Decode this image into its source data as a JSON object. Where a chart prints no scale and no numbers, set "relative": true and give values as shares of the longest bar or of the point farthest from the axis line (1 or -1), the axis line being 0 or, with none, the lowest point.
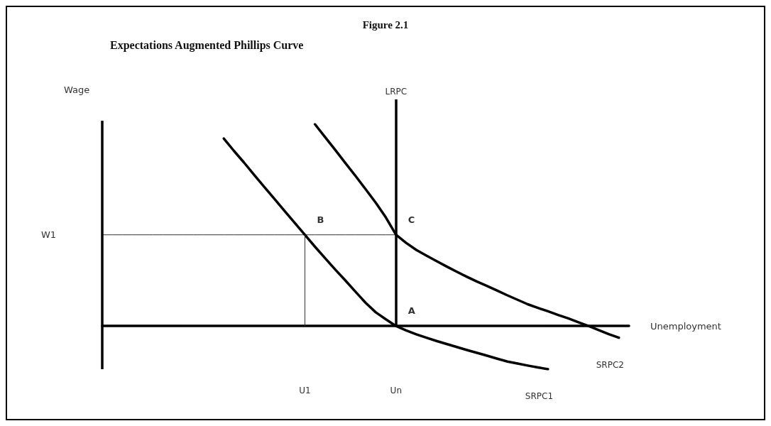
{
  "chart_data": {
    "type": "line",
    "title": "Figure 2.1",
    "subtitle": "Expectations Augmented Phillips Curve",
    "xlabel": "Unemployment",
    "ylabel": "Wage",
    "relative": true,
    "legend": false,
    "grid": false,
    "marker": "none",
    "categories": [
      null,
      null,
      null,
      null,
      null,
      null,
      null,
      null,
      null,
      null,
      null,
      null,
      null,
      null,
      null,
      null,
      null,
      null,
      null,
      null,
      "U1",
      null,
      null,
      null,
      null,
      null,
      null,
      null,
      null,
      "Un",
      null,
      null,
      null,
      null,
      null,
      null,
      null,
      null,
      null,
      null,
      null,
      null,
      null,
      null,
      null,
      null,
      null,
      null,
      null,
      null,
      null,
      null,
      null
    ],
    "series": [
      {
        "name": "SRPC1",
        "color": "#000000",
        "values": [
          null,
          null,
          null,
          null,
          null,
          null,
          null,
          null,
          null,
          null,
          null,
          null,
          0.929,
          0.868,
          0.81,
          0.749,
          0.689,
          0.63,
          0.57,
          0.511,
          0.452,
          0.393,
          0.336,
          0.28,
          0.226,
          0.17,
          0.115,
          0.068,
          0.033,
          0,
          -0.022,
          -0.041,
          -0.058,
          -0.074,
          -0.089,
          -0.104,
          -0.119,
          -0.133,
          -0.147,
          -0.162,
          -0.176,
          -0.186,
          -0.196,
          -0.205,
          -0.214,
          null,
          null,
          null,
          null,
          null,
          null,
          null,
          null
        ]
      },
      {
        "name": "SRPC2",
        "color": "#000000",
        "values": [
          null,
          null,
          null,
          null,
          null,
          null,
          null,
          null,
          null,
          null,
          null,
          null,
          null,
          null,
          null,
          null,
          null,
          null,
          null,
          null,
          null,
          1,
          0.936,
          0.873,
          0.808,
          0.744,
          0.678,
          0.611,
          0.538,
          0.452,
          0.412,
          0.377,
          0.349,
          0.322,
          0.295,
          0.269,
          0.244,
          0.22,
          0.198,
          0.175,
          0.152,
          0.13,
          0.108,
          0.09,
          0.073,
          0.055,
          0.038,
          0.019,
          0,
          -0.02,
          -0.04,
          -0.058,
          null
        ]
      },
      {
        "color": "#333333",
        "values": [
          0.452,
          0.452,
          0.452,
          0.452,
          0.452,
          0.452,
          0.452,
          0.452,
          0.452,
          0.452,
          0.452,
          0.452,
          0.452,
          0.452,
          0.452,
          0.452,
          0.452,
          0.452,
          0.452,
          0.452,
          0.452,
          0.452,
          0.452,
          0.452,
          0.452,
          0.452,
          0.452,
          0.452,
          0.452,
          0.452,
          null,
          null,
          null,
          null,
          null,
          null,
          null,
          null,
          null,
          null,
          null,
          null,
          null,
          null,
          null,
          null,
          null,
          null,
          null,
          null,
          null,
          null,
          null
        ]
      }
    ],
    "ref_lines": [
      {
        "axis": "x",
        "value": "Un",
        "label": "LRPC",
        "color": "#000000"
      },
      {
        "axis": "x",
        "value": "U1",
        "color": "#333333"
      }
    ],
    "annotations": [
      {
        "text": "A",
        "x": "Un",
        "y": 0
      },
      {
        "text": "B",
        "x": "U1",
        "y": 0.452
      },
      {
        "text": "C",
        "x": "Un",
        "y": 0.452
      },
      "W1"
    ]
  }
}
